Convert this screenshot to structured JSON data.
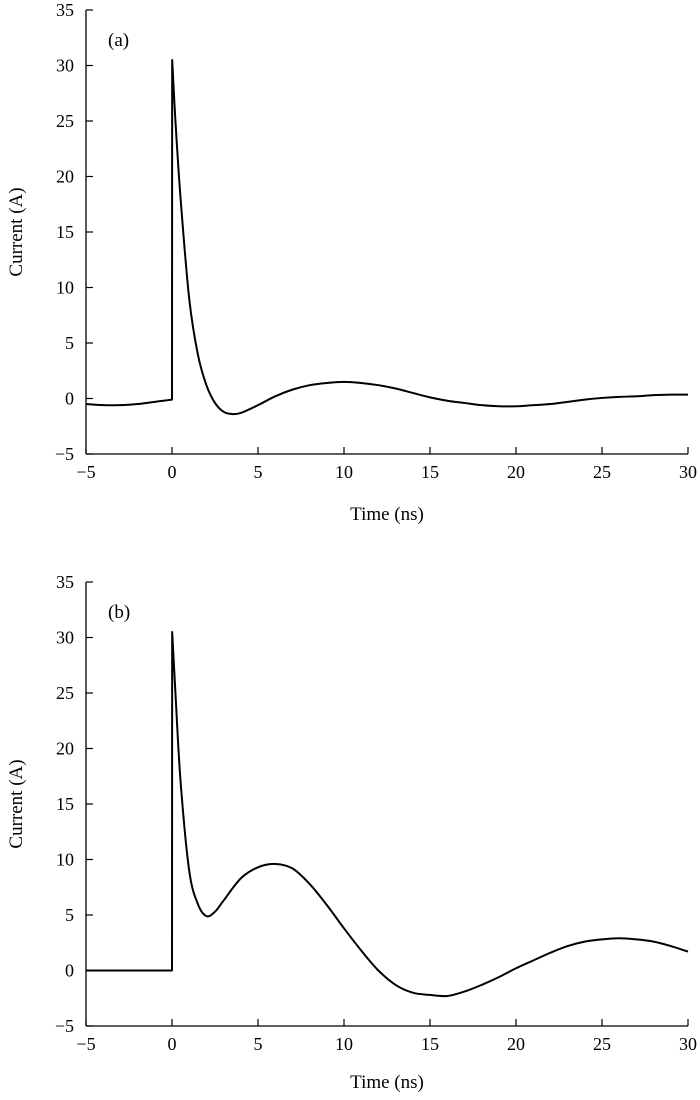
{
  "chart_data": [
    {
      "type": "line",
      "panel_label": "(a)",
      "xlabel": "Time (ns)",
      "ylabel": "Current (A)",
      "xlim": [
        -5,
        30
      ],
      "ylim": [
        -5,
        35
      ],
      "x_ticks": [
        -5,
        0,
        5,
        10,
        15,
        20,
        25,
        30
      ],
      "y_ticks": [
        -5,
        0,
        5,
        10,
        15,
        20,
        25,
        30,
        35
      ],
      "x_tick_labels": [
        "−5",
        "0",
        "5",
        "10",
        "15",
        "20",
        "25",
        "30"
      ],
      "y_tick_labels": [
        "−5",
        "0",
        "5",
        "10",
        "15",
        "20",
        "25",
        "30",
        "35"
      ],
      "grid": false,
      "series": [
        {
          "x": [
            -5,
            -4,
            -3,
            -2,
            -1,
            -0.5,
            0,
            0.01,
            0.2,
            0.5,
            1,
            1.5,
            2,
            2.5,
            3,
            3.5,
            4,
            5,
            6,
            7,
            8,
            9,
            10,
            11,
            12,
            13,
            14,
            15,
            16,
            17,
            18,
            19,
            20,
            21,
            22,
            23,
            24,
            25,
            26,
            27,
            28,
            29,
            30
          ],
          "y": [
            -0.5,
            -0.6,
            -0.6,
            -0.5,
            -0.3,
            -0.2,
            -0.1,
            30.5,
            25,
            18,
            9,
            4,
            1.2,
            -0.4,
            -1.2,
            -1.4,
            -1.3,
            -0.6,
            0.2,
            0.8,
            1.2,
            1.4,
            1.5,
            1.4,
            1.2,
            0.9,
            0.5,
            0.1,
            -0.2,
            -0.4,
            -0.6,
            -0.7,
            -0.7,
            -0.6,
            -0.5,
            -0.3,
            -0.1,
            0.05,
            0.15,
            0.2,
            0.3,
            0.35,
            0.35
          ]
        }
      ]
    },
    {
      "type": "line",
      "panel_label": "(b)",
      "xlabel": "Time (ns)",
      "ylabel": "Current (A)",
      "xlim": [
        -5,
        30
      ],
      "ylim": [
        -5,
        35
      ],
      "x_ticks": [
        -5,
        0,
        5,
        10,
        15,
        20,
        25,
        30
      ],
      "y_ticks": [
        -5,
        0,
        5,
        10,
        15,
        20,
        25,
        30,
        35
      ],
      "x_tick_labels": [
        "−5",
        "0",
        "5",
        "10",
        "15",
        "20",
        "25",
        "30"
      ],
      "y_tick_labels": [
        "−5",
        "0",
        "5",
        "10",
        "15",
        "20",
        "25",
        "30",
        "35"
      ],
      "grid": false,
      "series": [
        {
          "x": [
            -5,
            -2,
            0,
            0.01,
            0.2,
            0.5,
            1,
            1.5,
            2,
            2.5,
            3,
            4,
            5,
            6,
            7,
            8,
            9,
            10,
            11,
            12,
            13,
            14,
            15,
            16,
            17,
            18,
            19,
            20,
            21,
            22,
            23,
            24,
            25,
            26,
            27,
            28,
            29,
            30
          ],
          "y": [
            0,
            0,
            0,
            30.5,
            25,
            17,
            9,
            6,
            4.9,
            5.3,
            6.3,
            8.3,
            9.3,
            9.6,
            9.2,
            7.8,
            5.9,
            3.8,
            1.8,
            0,
            -1.3,
            -2,
            -2.2,
            -2.3,
            -1.9,
            -1.3,
            -0.6,
            0.2,
            0.9,
            1.6,
            2.2,
            2.6,
            2.8,
            2.9,
            2.8,
            2.6,
            2.2,
            1.7
          ]
        }
      ]
    }
  ]
}
